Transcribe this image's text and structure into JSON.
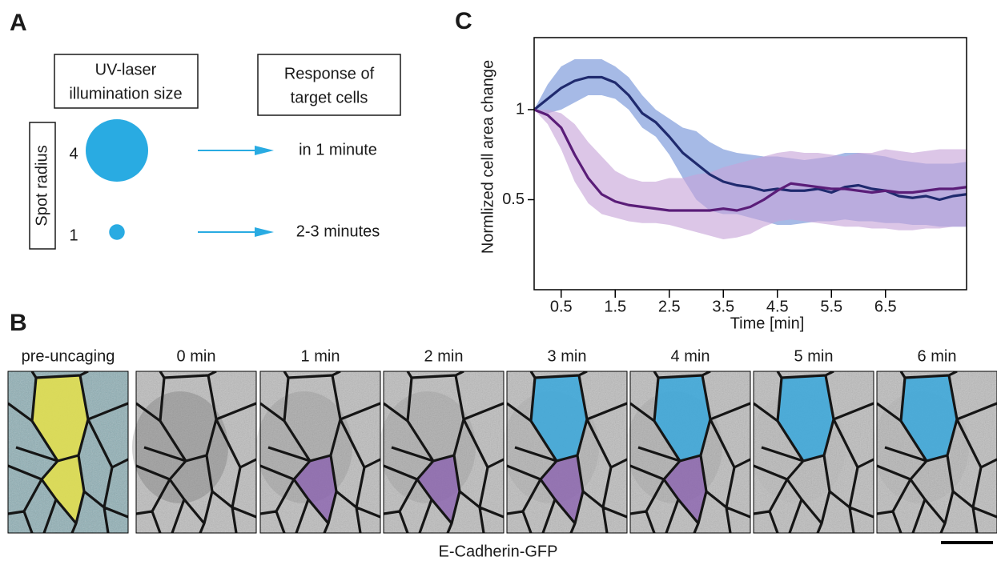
{
  "panel_a": {
    "label": "A",
    "size_header": [
      "UV-laser",
      "illumination size"
    ],
    "response_header": [
      "Response of",
      "target cells"
    ],
    "axis_label": "Spot radius",
    "rows": [
      {
        "radius": 4,
        "response": "in 1 minute"
      },
      {
        "radius": 1,
        "response": "2-3 minutes"
      }
    ],
    "spot_color": "#29abe2"
  },
  "panel_b": {
    "label": "B",
    "frames": [
      "pre-uncaging",
      "0 min",
      "1 min",
      "2 min",
      "3 min",
      "4 min",
      "5 min",
      "6 min"
    ],
    "caption": "E-Cadherin-GFP"
  },
  "chart_data": {
    "type": "line",
    "label": "C",
    "xlabel": "Time [min]",
    "ylabel": "Normlized cell area change",
    "x": [
      0,
      0.25,
      0.5,
      0.75,
      1,
      1.25,
      1.5,
      1.75,
      2,
      2.25,
      2.5,
      2.75,
      3,
      3.25,
      3.5,
      3.75,
      4,
      4.25,
      4.5,
      4.75,
      5,
      5.25,
      5.5,
      5.75,
      6,
      6.25,
      6.5,
      6.75,
      7,
      7.25,
      7.5,
      7.75,
      8
    ],
    "xlim": [
      0,
      8
    ],
    "xticks": [
      0.5,
      1.5,
      2.5,
      3.5,
      4.5,
      5.5,
      6.5
    ],
    "ylim": [
      0,
      1.4
    ],
    "yticks": [
      0.5,
      1
    ],
    "series": [
      {
        "color": "#1f2a6e",
        "band_color": "#6f8fd6",
        "values": [
          1.0,
          1.06,
          1.12,
          1.16,
          1.18,
          1.18,
          1.15,
          1.08,
          0.98,
          0.93,
          0.85,
          0.76,
          0.7,
          0.64,
          0.6,
          0.58,
          0.57,
          0.55,
          0.56,
          0.55,
          0.55,
          0.56,
          0.54,
          0.57,
          0.58,
          0.56,
          0.55,
          0.52,
          0.51,
          0.52,
          0.5,
          0.52,
          0.53
        ],
        "lower": [
          1.0,
          0.98,
          1.0,
          1.04,
          1.08,
          1.08,
          1.06,
          1.0,
          0.9,
          0.85,
          0.75,
          0.62,
          0.5,
          0.44,
          0.42,
          0.42,
          0.4,
          0.38,
          0.36,
          0.36,
          0.37,
          0.38,
          0.38,
          0.39,
          0.38,
          0.38,
          0.37,
          0.37,
          0.36,
          0.36,
          0.35,
          0.35,
          0.35
        ],
        "upper": [
          1.0,
          1.14,
          1.24,
          1.28,
          1.28,
          1.28,
          1.24,
          1.18,
          1.08,
          1.0,
          0.95,
          0.9,
          0.88,
          0.82,
          0.78,
          0.76,
          0.75,
          0.74,
          0.74,
          0.73,
          0.72,
          0.73,
          0.74,
          0.76,
          0.76,
          0.75,
          0.74,
          0.72,
          0.71,
          0.7,
          0.7,
          0.7,
          0.71
        ]
      },
      {
        "color": "#5a1d78",
        "band_color": "#c7a3d9",
        "values": [
          1.0,
          0.97,
          0.9,
          0.75,
          0.62,
          0.53,
          0.49,
          0.47,
          0.46,
          0.45,
          0.44,
          0.44,
          0.44,
          0.44,
          0.45,
          0.44,
          0.46,
          0.5,
          0.55,
          0.59,
          0.58,
          0.57,
          0.56,
          0.56,
          0.55,
          0.54,
          0.55,
          0.54,
          0.54,
          0.55,
          0.56,
          0.56,
          0.57
        ],
        "lower": [
          1.0,
          0.92,
          0.78,
          0.6,
          0.48,
          0.42,
          0.4,
          0.38,
          0.37,
          0.37,
          0.36,
          0.34,
          0.32,
          0.3,
          0.28,
          0.29,
          0.31,
          0.35,
          0.38,
          0.39,
          0.38,
          0.37,
          0.36,
          0.35,
          0.35,
          0.34,
          0.34,
          0.33,
          0.33,
          0.34,
          0.34,
          0.35,
          0.35
        ],
        "upper": [
          1.0,
          1.0,
          0.98,
          0.92,
          0.82,
          0.74,
          0.66,
          0.62,
          0.6,
          0.6,
          0.62,
          0.62,
          0.64,
          0.65,
          0.68,
          0.7,
          0.72,
          0.74,
          0.76,
          0.77,
          0.76,
          0.76,
          0.75,
          0.74,
          0.76,
          0.76,
          0.78,
          0.77,
          0.76,
          0.77,
          0.78,
          0.78,
          0.78
        ]
      }
    ]
  }
}
